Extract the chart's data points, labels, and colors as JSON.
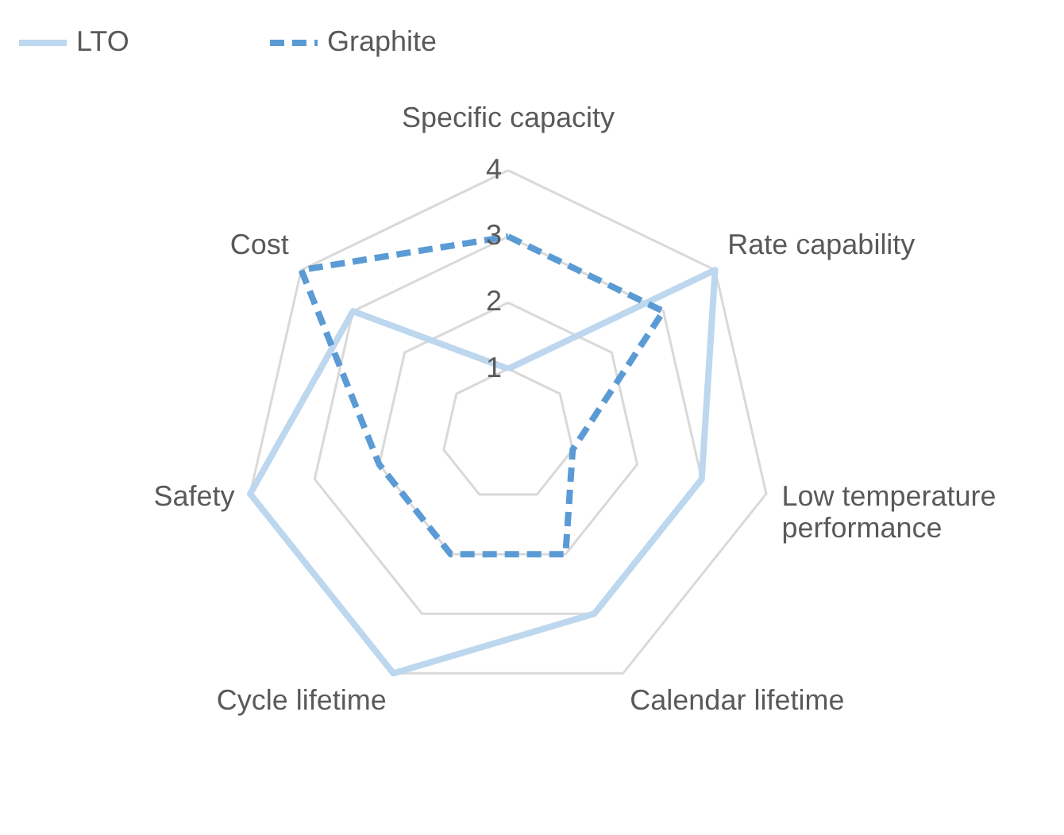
{
  "chart_data": {
    "type": "radar",
    "categories": [
      "Specific capacity",
      "Rate capability",
      "Low temperature\nperformance",
      "Calendar lifetime",
      "Cycle lifetime",
      "Safety",
      "Cost"
    ],
    "series": [
      {
        "name": "LTO",
        "color": "#bdd7ee",
        "line_style": "solid",
        "values": [
          1,
          4,
          3,
          3,
          4,
          4,
          3
        ]
      },
      {
        "name": "Graphite",
        "color": "#5b9bd5",
        "line_style": "dashed",
        "values": [
          3,
          3,
          1,
          2,
          2,
          2,
          4
        ]
      }
    ],
    "ylim": [
      0,
      4
    ],
    "yticks": [
      {
        "value": 1,
        "label": "1"
      },
      {
        "value": 2,
        "label": "2"
      },
      {
        "value": 3,
        "label": "3"
      },
      {
        "value": 4,
        "label": "4"
      }
    ],
    "grid": true,
    "legend": "top",
    "marker": "none"
  }
}
